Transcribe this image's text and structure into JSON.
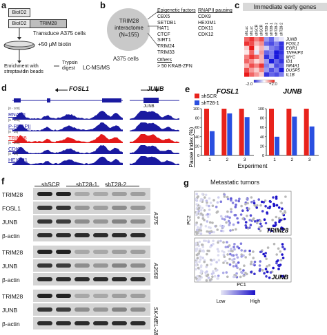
{
  "panels": {
    "a": {
      "label": "a",
      "bioid1": "BioID2",
      "bioid2": "BioID2",
      "trim28": "TRIM28",
      "step1": "Transduce A375 cells",
      "step2": "+50 μM biotin",
      "step3a": "Enrichment with",
      "step3b": "streptavidin beads",
      "step4a": "Trypsin",
      "step4b": "digest",
      "step5": "LC-MS/MS"
    },
    "b": {
      "label": "b",
      "circle_line1": "TRIM28",
      "circle_line2": "interactome",
      "circle_line3": "(N=155)",
      "cells": "A375 cells",
      "epi_header": "Epigenetic factors",
      "epi_items": [
        "CBX5",
        "SETDB1",
        "HAT1",
        "CTCF",
        "SIRT1",
        "TRIM24",
        "TRIM33"
      ],
      "rnapii_header": "RNAPII pausing",
      "rnapii_items": [
        "CDK9",
        "HEXIM1",
        "CDK11",
        "CDK12"
      ],
      "others_header": "Others",
      "others_item": "> 50 KRAB-ZFN"
    },
    "c": {
      "label": "c",
      "title": "Immediate early genes",
      "columns": [
        "shLuc",
        "shLuc",
        "shSCR",
        "shSCR",
        "shT28-1",
        "shT28-1",
        "shT28-2",
        "shT28-2"
      ],
      "genes": [
        "JUNB",
        "FOSL1",
        "EGR1",
        "TNFAIP3",
        "MYC",
        "ID1",
        "NR4A1",
        "DUSP5",
        "IL1B"
      ],
      "scale_min": "-2.0",
      "scale_max": "+2.0",
      "colors": {
        "high": "#e8231c",
        "low": "#2a2ad8",
        "mid": "#ffffff"
      }
    },
    "d": {
      "label": "d",
      "gene1": "FOSL1",
      "gene2": "JUNB",
      "gene2_box": "JUNB",
      "tracks": [
        {
          "name": "RNAPII",
          "range": "[0 - 100]",
          "color": "#1a1aa0"
        },
        {
          "name": "P-RNAPII",
          "range": "[0 - 100]",
          "color": "#1a1aa0"
        },
        {
          "name": "TRIM28",
          "range": "[0 - 15]",
          "color": "#e31a1a"
        },
        {
          "name": "CDK9",
          "range": "[0 - 100]",
          "color": "#1a1aa0"
        },
        {
          "name": "HEXIM1",
          "range": "[0 - 20]",
          "color": "#1a1aa0"
        }
      ]
    },
    "e": {
      "label": "e",
      "legend": [
        "shSCR",
        "shT28-1"
      ],
      "colors": {
        "shSCR": "#e8231c",
        "shT28": "#2a4fe0"
      },
      "ylabel": "Pause index (%)",
      "xlabel": "Experiment",
      "yticks": [
        "0",
        "20",
        "40",
        "60",
        "80",
        "100"
      ]
    },
    "f": {
      "label": "f",
      "col_headers": [
        "shSCR",
        "shT28-1",
        "shT28-2"
      ],
      "groups": [
        {
          "cell": "A375",
          "rows": [
            "TRIM28",
            "FOSL1",
            "JUNB",
            "β-actin"
          ]
        },
        {
          "cell": "A2058",
          "rows": [
            "TRIM28",
            "JUNB",
            "β-actin"
          ]
        },
        {
          "cell": "SK-MEL-28",
          "rows": [
            "TRIM28",
            "JUNB",
            "β-actin"
          ]
        }
      ]
    },
    "g": {
      "label": "g",
      "title": "Metastatic tumors",
      "ylabel": "PC2",
      "xlabel": "PC1",
      "plot1_gene": "TRIM28",
      "plot2_gene": "JUNB",
      "legend_low": "Low",
      "legend_high": "High"
    }
  },
  "chart_data": [
    {
      "type": "bar",
      "title": "FOSL1",
      "categories": [
        "1",
        "2",
        "3"
      ],
      "series": [
        {
          "name": "shSCR",
          "values": [
            100,
            100,
            100
          ]
        },
        {
          "name": "shT28-1",
          "values": [
            52,
            90,
            82
          ]
        }
      ],
      "xlabel": "Experiment",
      "ylabel": "Pause index (%)",
      "ylim": [
        0,
        100
      ]
    },
    {
      "type": "bar",
      "title": "JUNB",
      "categories": [
        "1",
        "2",
        "3"
      ],
      "series": [
        {
          "name": "shSCR",
          "values": [
            100,
            100,
            100
          ]
        },
        {
          "name": "shT28-1",
          "values": [
            40,
            83,
            62
          ]
        }
      ],
      "xlabel": "Experiment",
      "ylabel": "Pause index (%)",
      "ylim": [
        0,
        100
      ]
    }
  ]
}
